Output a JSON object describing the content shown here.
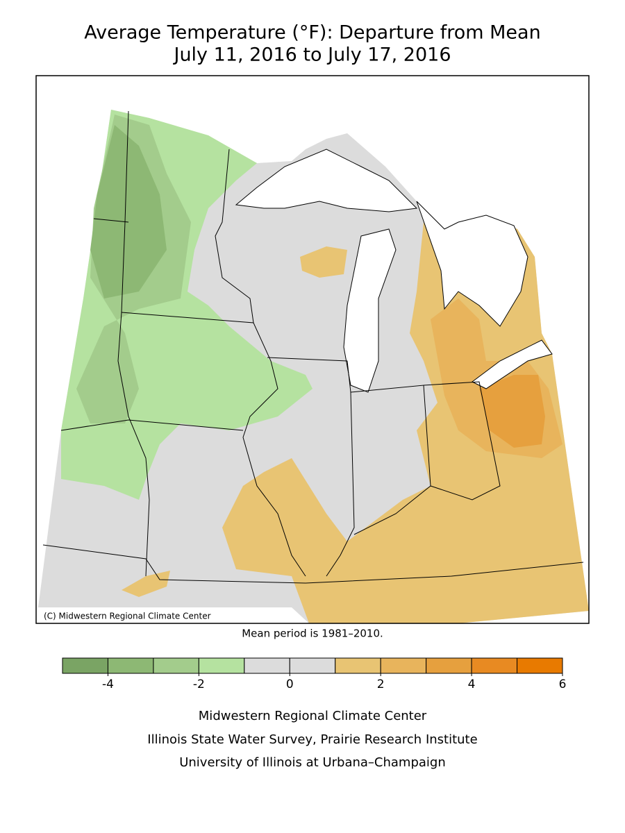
{
  "title": [
    "Average Temperature (°F): Departure from Mean",
    "July 11, 2016 to July 17, 2016"
  ],
  "credit": "(C) Midwestern Regional Climate Center",
  "note": "Mean period is 1981–2010.",
  "legend": {
    "lim": [
      -5,
      6
    ],
    "ticks": [
      -4,
      -2,
      0,
      2,
      4,
      6
    ],
    "colors": [
      "#7aa464",
      "#8db874",
      "#a3cc8c",
      "#b5e2a0",
      "#dcdcdc",
      "#dcdcdc",
      "#e8c473",
      "#e8b45c",
      "#e6a03e",
      "#e88a22",
      "#e87a00"
    ]
  },
  "footer": [
    "Midwestern Regional Climate Center",
    "Illinois State Water Survey, Prairie Research Institute",
    "University of Illinois at Urbana–Champaign"
  ]
}
